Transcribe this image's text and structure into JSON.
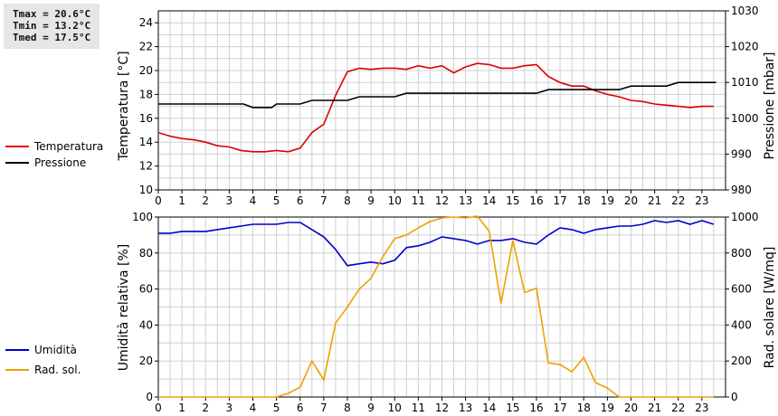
{
  "stats": {
    "tmax": "Tmax = 20.6°C",
    "tmin": "Tmin = 13.2°C",
    "tmed": "Tmed = 17.5°C"
  },
  "colors": {
    "temperature": "#dd0000",
    "pressure": "#000000",
    "humidity": "#0000cc",
    "solar": "#f0a000",
    "grid": "#d0d0d0"
  },
  "chart_data": [
    {
      "type": "line",
      "x_ticks": [
        "0",
        "1",
        "2",
        "3",
        "4",
        "5",
        "6",
        "7",
        "8",
        "9",
        "10",
        "11",
        "12",
        "13",
        "14",
        "15",
        "16",
        "17",
        "18",
        "19",
        "20",
        "21",
        "22",
        "23"
      ],
      "xlim": [
        0,
        24
      ],
      "ylabel_left": "Temperatura [°C]",
      "ylabel_right": "Pressione [mbar]",
      "ylim_left": [
        10,
        25
      ],
      "ylim_right": [
        980,
        1030
      ],
      "y_ticks_left": [
        "10",
        "12",
        "14",
        "16",
        "18",
        "20",
        "22",
        "24"
      ],
      "y_ticks_right": [
        "980",
        "990",
        "1000",
        "1010",
        "1020",
        "1030"
      ],
      "legend_position": "left",
      "grid": true,
      "series": [
        {
          "name": "Temperatura",
          "axis": "left",
          "x": [
            0,
            0.5,
            1,
            1.5,
            2,
            2.5,
            3,
            3.5,
            4,
            4.5,
            5,
            5.5,
            6,
            6.5,
            7,
            7.5,
            8,
            8.5,
            9,
            9.5,
            10,
            10.5,
            11,
            11.5,
            12,
            12.5,
            13,
            13.5,
            14,
            14.5,
            15,
            15.5,
            16,
            16.5,
            17,
            17.5,
            18,
            18.5,
            19,
            19.5,
            20,
            20.5,
            21,
            21.5,
            22,
            22.5,
            23,
            23.5
          ],
          "values": [
            14.8,
            14.5,
            14.3,
            14.2,
            14.0,
            13.7,
            13.6,
            13.3,
            13.2,
            13.2,
            13.3,
            13.2,
            13.5,
            14.8,
            15.5,
            17.9,
            19.9,
            20.2,
            20.1,
            20.2,
            20.2,
            20.1,
            20.4,
            20.2,
            20.4,
            19.8,
            20.3,
            20.6,
            20.5,
            20.2,
            20.2,
            20.4,
            20.5,
            19.5,
            19.0,
            18.7,
            18.7,
            18.3,
            18.0,
            17.8,
            17.5,
            17.4,
            17.2,
            17.1,
            17.0,
            16.9,
            17.0,
            17.0
          ]
        },
        {
          "name": "Pressione",
          "axis": "right",
          "x": [
            0,
            3.6,
            4,
            4.8,
            5,
            6,
            6.5,
            8,
            8.5,
            10,
            10.5,
            16,
            16.5,
            19.5,
            20,
            21.5,
            22,
            23.6
          ],
          "values": [
            1004,
            1004,
            1003,
            1003,
            1004,
            1004,
            1005,
            1005,
            1006,
            1006,
            1007,
            1007,
            1008,
            1008,
            1009,
            1009,
            1010,
            1010
          ]
        }
      ]
    },
    {
      "type": "line",
      "x_ticks": [
        "0",
        "1",
        "2",
        "3",
        "4",
        "5",
        "6",
        "7",
        "8",
        "9",
        "10",
        "11",
        "12",
        "13",
        "14",
        "15",
        "16",
        "17",
        "18",
        "19",
        "20",
        "21",
        "22",
        "23"
      ],
      "xlim": [
        0,
        24
      ],
      "ylabel_left": "Umidità relativa [%]",
      "ylabel_right": "Rad. solare [W/mq]",
      "ylim_left": [
        0,
        100
      ],
      "ylim_right": [
        0,
        1000
      ],
      "y_ticks_left": [
        "0",
        "20",
        "40",
        "60",
        "80",
        "100"
      ],
      "y_ticks_right": [
        "0",
        "200",
        "400",
        "600",
        "800",
        "1000"
      ],
      "legend_position": "left",
      "grid": true,
      "series": [
        {
          "name": "Umidità",
          "axis": "left",
          "x": [
            0,
            0.5,
            1,
            1.5,
            2,
            2.5,
            3,
            3.5,
            4,
            4.5,
            5,
            5.5,
            6,
            6.5,
            7,
            7.5,
            8,
            8.5,
            9,
            9.5,
            10,
            10.5,
            11,
            11.5,
            12,
            12.5,
            13,
            13.5,
            14,
            14.5,
            15,
            15.5,
            16,
            16.5,
            17,
            17.5,
            18,
            18.5,
            19,
            19.5,
            20,
            20.5,
            21,
            21.5,
            22,
            22.5,
            23,
            23.5
          ],
          "values": [
            91,
            91,
            92,
            92,
            92,
            93,
            94,
            95,
            96,
            96,
            96,
            97,
            97,
            93,
            89,
            82,
            73,
            74,
            75,
            74,
            76,
            83,
            84,
            86,
            89,
            88,
            87,
            85,
            87,
            87,
            88,
            86,
            85,
            90,
            94,
            93,
            91,
            93,
            94,
            95,
            95,
            96,
            98,
            97,
            98,
            96,
            98,
            96
          ]
        },
        {
          "name": "Rad. sol.",
          "axis": "right",
          "x": [
            0,
            0.5,
            1,
            1.5,
            2,
            2.5,
            3,
            3.5,
            4,
            4.5,
            5,
            5.5,
            6,
            6.5,
            7,
            7.5,
            8,
            8.5,
            9,
            9.5,
            10,
            10.5,
            11,
            11.5,
            12,
            12.5,
            13,
            13.5,
            14,
            14.5,
            15,
            15.5,
            16,
            16.5,
            17,
            17.5,
            18,
            18.5,
            19,
            19.5,
            20,
            20.5,
            21,
            21.5,
            22,
            22.5,
            23,
            23.5
          ],
          "values": [
            0,
            0,
            0,
            0,
            0,
            0,
            0,
            0,
            0,
            0,
            0,
            20,
            55,
            200,
            95,
            410,
            500,
            600,
            660,
            780,
            880,
            900,
            940,
            975,
            995,
            1000,
            995,
            1005,
            920,
            520,
            870,
            580,
            605,
            190,
            180,
            140,
            220,
            80,
            50,
            0,
            0,
            0,
            0,
            0,
            0,
            0,
            0,
            0
          ]
        }
      ]
    }
  ]
}
